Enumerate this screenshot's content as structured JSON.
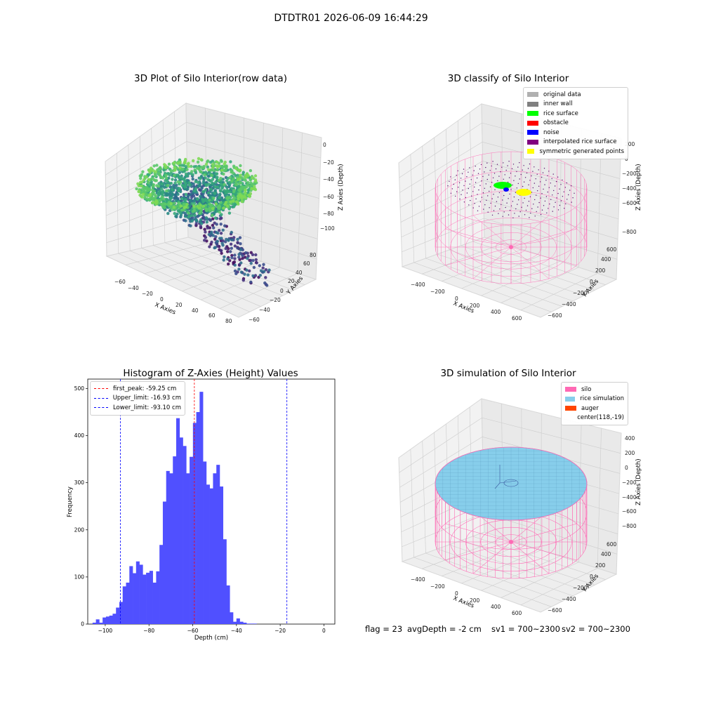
{
  "suptitle": "DTDTR01 2026-06-09 16:44:29",
  "panels": {
    "raw": {
      "title": "3D Plot of Silo Interior(row data)",
      "xlabel": "X Axies",
      "ylabel": "Y Axies",
      "zlabel": "Z Axies (Depth)",
      "xticks": [
        "−60",
        "−40",
        "−20",
        "0",
        "20",
        "40",
        "60",
        "80"
      ],
      "yticks": [
        "−60",
        "−40",
        "−20",
        "0",
        "20",
        "40",
        "60",
        "80"
      ],
      "zticks": [
        "0",
        "−20",
        "−40",
        "−60",
        "−80",
        "−100"
      ]
    },
    "classify": {
      "title": "3D classify of Silo Interior",
      "xlabel": "X Axies",
      "ylabel": "Y Axies",
      "zlabel": "Z Axies (Depth)",
      "xticks": [
        "−400",
        "−200",
        "0",
        "200",
        "400",
        "600"
      ],
      "yticks": [
        "−600",
        "−400",
        "−200",
        "0",
        "200",
        "400",
        "600"
      ],
      "zticks": [
        "200",
        "0",
        "−200",
        "−400",
        "−600",
        "−800"
      ],
      "legend": [
        {
          "label": "original data",
          "color": "#b0b0b0"
        },
        {
          "label": "inner wall",
          "color": "#808080"
        },
        {
          "label": "rice surface",
          "color": "#00ff00"
        },
        {
          "label": "obstacle",
          "color": "#ff0000"
        },
        {
          "label": "noise",
          "color": "#0000ff"
        },
        {
          "label": "interpolated rice surface",
          "color": "#800080"
        },
        {
          "label": "symmetric generated points",
          "color": "#ffff00"
        }
      ]
    },
    "simulation": {
      "title": "3D simulation of Silo Interior",
      "xlabel": "X Axies",
      "ylabel": "Y Axies",
      "zlabel": "Z Axies (Depth)",
      "xticks": [
        "−400",
        "−200",
        "0",
        "200",
        "400",
        "600"
      ],
      "yticks": [
        "−600",
        "−400",
        "−200",
        "0",
        "200",
        "400",
        "600"
      ],
      "zticks": [
        "400",
        "200",
        "0",
        "−200",
        "−400",
        "−600",
        "−800"
      ],
      "legend": [
        {
          "label": "silo",
          "color": "#ff69b4"
        },
        {
          "label": "rice simulation",
          "color": "#87ceeb"
        },
        {
          "label": "auger",
          "color": "#ff4500"
        },
        {
          "label": "center(118,-19)",
          "color": ""
        }
      ]
    }
  },
  "chart_data": {
    "type": "bar",
    "title": "Histogram of Z-Axies (Height) Values",
    "xlabel": "Depth (cm)",
    "ylabel": "Frequency",
    "xlim": [
      -108,
      5
    ],
    "ylim": [
      0,
      520
    ],
    "xticks": [
      -100,
      -80,
      -60,
      -40,
      -20,
      0
    ],
    "xtick_labels": [
      "−100",
      "−80",
      "−60",
      "−40",
      "−20",
      "0"
    ],
    "yticks": [
      0,
      100,
      200,
      300,
      400,
      500
    ],
    "bar_color": "#5050ff",
    "bin_start": -105.8,
    "bin_width": 1.53,
    "values": [
      3,
      10,
      3,
      14,
      16,
      18,
      22,
      35,
      47,
      80,
      88,
      123,
      108,
      133,
      126,
      105,
      109,
      113,
      88,
      112,
      168,
      260,
      325,
      320,
      356,
      437,
      396,
      378,
      320,
      355,
      427,
      450,
      493,
      345,
      296,
      288,
      320,
      338,
      292,
      180,
      82,
      25,
      5,
      12,
      5,
      3,
      1,
      1,
      1
    ],
    "vlines": [
      {
        "label": "first_peak: -59.25 cm",
        "x": -59.25,
        "color": "#ff0000"
      },
      {
        "label": "Upper_limit: -16.93 cm",
        "x": -16.93,
        "color": "#0000ff"
      },
      {
        "label": "Lower_limit: -93.10 cm",
        "x": -93.1,
        "color": "#0000ff"
      }
    ]
  },
  "footer": {
    "flag": "flag = 23",
    "avg_depth": "avgDepth = -2 cm",
    "sv1": "sv1 = 700~2300",
    "sv2": "sv2 = 700~2300"
  }
}
